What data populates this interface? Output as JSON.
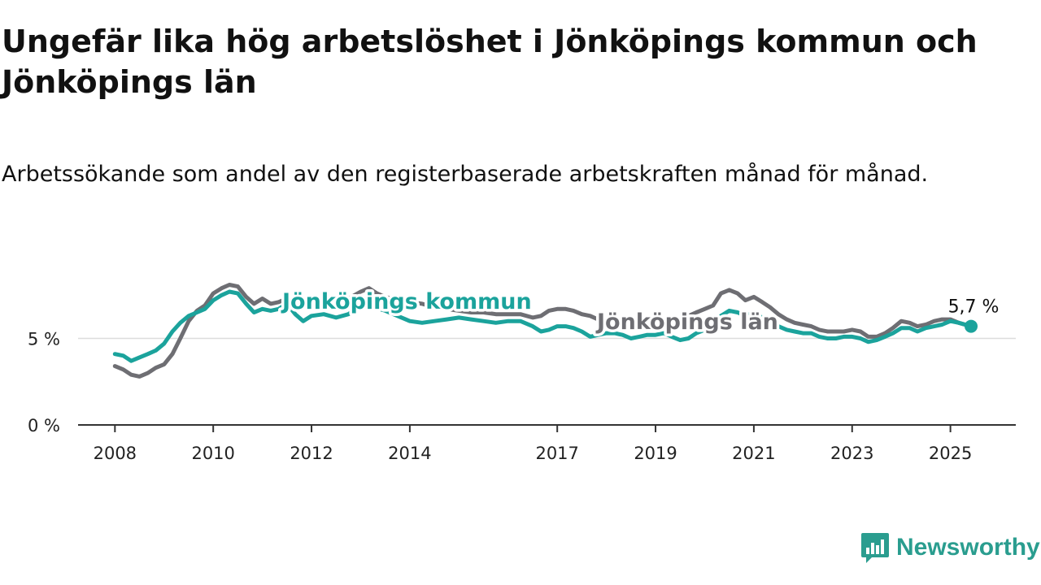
{
  "title": "Ungefär lika hög arbetslöshet i Jönköpings kommun och Jönköpings län",
  "subtitle": "Arbetssökande som andel av den registerbaserade arbetskraften månad för månad.",
  "brand": {
    "name": "Newsworthy",
    "color": "#2a9d8f",
    "icon": "bar-chart-speech-bubble-icon"
  },
  "chart_data": {
    "type": "line",
    "title": "Ungefär lika hög arbetslöshet i Jönköpings kommun och Jönköpings län",
    "subtitle": "Arbetssökande som andel av den registerbaserade arbetskraften månad för månad.",
    "xlabel": "",
    "ylabel": "",
    "x_range": [
      2007.25,
      2026.33
    ],
    "ylim": [
      0,
      10
    ],
    "y_ticks": [
      0,
      5
    ],
    "y_tick_labels": [
      "0 %",
      "5 %"
    ],
    "x_ticks": [
      2008,
      2010,
      2012,
      2014,
      2017,
      2019,
      2021,
      2023,
      2025
    ],
    "x_tick_labels": [
      "2008",
      "2010",
      "2012",
      "2014",
      "2017",
      "2019",
      "2021",
      "2023",
      "2025"
    ],
    "grid": "horizontal",
    "end_label": "5,7 %",
    "series": [
      {
        "name": "Jönköpings län",
        "color": "#6e6e73",
        "points": [
          [
            2008.0,
            3.4
          ],
          [
            2008.17,
            3.2
          ],
          [
            2008.33,
            2.9
          ],
          [
            2008.5,
            2.8
          ],
          [
            2008.67,
            3.0
          ],
          [
            2008.83,
            3.3
          ],
          [
            2009.0,
            3.5
          ],
          [
            2009.17,
            4.1
          ],
          [
            2009.33,
            5.0
          ],
          [
            2009.5,
            6.0
          ],
          [
            2009.67,
            6.6
          ],
          [
            2009.83,
            6.9
          ],
          [
            2010.0,
            7.6
          ],
          [
            2010.17,
            7.9
          ],
          [
            2010.33,
            8.1
          ],
          [
            2010.5,
            8.0
          ],
          [
            2010.67,
            7.4
          ],
          [
            2010.83,
            7.0
          ],
          [
            2011.0,
            7.3
          ],
          [
            2011.17,
            7.0
          ],
          [
            2011.33,
            7.1
          ],
          [
            2011.5,
            7.3
          ],
          [
            2011.67,
            7.0
          ],
          [
            2011.83,
            6.8
          ],
          [
            2012.0,
            6.9
          ],
          [
            2012.25,
            7.0
          ],
          [
            2012.5,
            7.1
          ],
          [
            2012.75,
            7.3
          ],
          [
            2013.0,
            7.7
          ],
          [
            2013.17,
            7.9
          ],
          [
            2013.33,
            7.6
          ],
          [
            2013.5,
            7.4
          ],
          [
            2013.75,
            7.2
          ],
          [
            2014.0,
            7.1
          ],
          [
            2014.25,
            7.0
          ],
          [
            2014.5,
            6.8
          ],
          [
            2014.75,
            6.7
          ],
          [
            2015.0,
            6.6
          ],
          [
            2015.25,
            6.5
          ],
          [
            2015.5,
            6.5
          ],
          [
            2015.75,
            6.4
          ],
          [
            2016.0,
            6.4
          ],
          [
            2016.25,
            6.4
          ],
          [
            2016.5,
            6.2
          ],
          [
            2016.67,
            6.3
          ],
          [
            2016.83,
            6.6
          ],
          [
            2017.0,
            6.7
          ],
          [
            2017.17,
            6.7
          ],
          [
            2017.33,
            6.6
          ],
          [
            2017.5,
            6.4
          ],
          [
            2017.67,
            6.3
          ],
          [
            2017.83,
            6.1
          ],
          [
            2018.0,
            6.0
          ],
          [
            2018.17,
            5.8
          ],
          [
            2018.33,
            5.7
          ],
          [
            2018.5,
            5.6
          ],
          [
            2018.67,
            5.6
          ],
          [
            2018.83,
            5.6
          ],
          [
            2019.0,
            5.6
          ],
          [
            2019.17,
            5.8
          ],
          [
            2019.33,
            5.9
          ],
          [
            2019.5,
            6.0
          ],
          [
            2019.67,
            6.3
          ],
          [
            2019.83,
            6.5
          ],
          [
            2020.0,
            6.7
          ],
          [
            2020.17,
            6.9
          ],
          [
            2020.33,
            7.6
          ],
          [
            2020.5,
            7.8
          ],
          [
            2020.67,
            7.6
          ],
          [
            2020.83,
            7.2
          ],
          [
            2021.0,
            7.4
          ],
          [
            2021.17,
            7.1
          ],
          [
            2021.33,
            6.8
          ],
          [
            2021.5,
            6.4
          ],
          [
            2021.67,
            6.1
          ],
          [
            2021.83,
            5.9
          ],
          [
            2022.0,
            5.8
          ],
          [
            2022.17,
            5.7
          ],
          [
            2022.33,
            5.5
          ],
          [
            2022.5,
            5.4
          ],
          [
            2022.67,
            5.4
          ],
          [
            2022.83,
            5.4
          ],
          [
            2023.0,
            5.5
          ],
          [
            2023.17,
            5.4
          ],
          [
            2023.33,
            5.1
          ],
          [
            2023.5,
            5.1
          ],
          [
            2023.67,
            5.3
          ],
          [
            2023.83,
            5.6
          ],
          [
            2024.0,
            6.0
          ],
          [
            2024.17,
            5.9
          ],
          [
            2024.33,
            5.7
          ],
          [
            2024.5,
            5.8
          ],
          [
            2024.67,
            6.0
          ],
          [
            2024.83,
            6.1
          ],
          [
            2025.0,
            6.1
          ],
          [
            2025.17,
            5.9
          ],
          [
            2025.42,
            5.7
          ]
        ]
      },
      {
        "name": "Jönköpings kommun",
        "color": "#1ba39c",
        "points": [
          [
            2008.0,
            4.1
          ],
          [
            2008.17,
            4.0
          ],
          [
            2008.33,
            3.7
          ],
          [
            2008.5,
            3.9
          ],
          [
            2008.67,
            4.1
          ],
          [
            2008.83,
            4.3
          ],
          [
            2009.0,
            4.7
          ],
          [
            2009.17,
            5.4
          ],
          [
            2009.33,
            5.9
          ],
          [
            2009.5,
            6.3
          ],
          [
            2009.67,
            6.5
          ],
          [
            2009.83,
            6.7
          ],
          [
            2010.0,
            7.2
          ],
          [
            2010.17,
            7.5
          ],
          [
            2010.33,
            7.7
          ],
          [
            2010.5,
            7.6
          ],
          [
            2010.67,
            7.0
          ],
          [
            2010.83,
            6.5
          ],
          [
            2011.0,
            6.7
          ],
          [
            2011.17,
            6.6
          ],
          [
            2011.33,
            6.7
          ],
          [
            2011.5,
            7.0
          ],
          [
            2011.67,
            6.4
          ],
          [
            2011.83,
            6.0
          ],
          [
            2012.0,
            6.3
          ],
          [
            2012.25,
            6.4
          ],
          [
            2012.5,
            6.2
          ],
          [
            2012.75,
            6.4
          ],
          [
            2013.0,
            6.9
          ],
          [
            2013.25,
            6.8
          ],
          [
            2013.5,
            6.6
          ],
          [
            2013.75,
            6.3
          ],
          [
            2014.0,
            6.0
          ],
          [
            2014.25,
            5.9
          ],
          [
            2014.5,
            6.0
          ],
          [
            2014.75,
            6.1
          ],
          [
            2015.0,
            6.2
          ],
          [
            2015.25,
            6.1
          ],
          [
            2015.5,
            6.0
          ],
          [
            2015.75,
            5.9
          ],
          [
            2016.0,
            6.0
          ],
          [
            2016.25,
            6.0
          ],
          [
            2016.5,
            5.7
          ],
          [
            2016.67,
            5.4
          ],
          [
            2016.83,
            5.5
          ],
          [
            2017.0,
            5.7
          ],
          [
            2017.17,
            5.7
          ],
          [
            2017.33,
            5.6
          ],
          [
            2017.5,
            5.4
          ],
          [
            2017.67,
            5.1
          ],
          [
            2017.83,
            5.2
          ],
          [
            2018.0,
            5.3
          ],
          [
            2018.17,
            5.3
          ],
          [
            2018.33,
            5.2
          ],
          [
            2018.5,
            5.0
          ],
          [
            2018.67,
            5.1
          ],
          [
            2018.83,
            5.2
          ],
          [
            2019.0,
            5.2
          ],
          [
            2019.17,
            5.3
          ],
          [
            2019.33,
            5.1
          ],
          [
            2019.5,
            4.9
          ],
          [
            2019.67,
            5.0
          ],
          [
            2019.83,
            5.3
          ],
          [
            2020.0,
            5.5
          ],
          [
            2020.17,
            5.7
          ],
          [
            2020.33,
            6.3
          ],
          [
            2020.5,
            6.6
          ],
          [
            2020.67,
            6.5
          ],
          [
            2020.83,
            6.3
          ],
          [
            2021.0,
            6.5
          ],
          [
            2021.17,
            6.2
          ],
          [
            2021.33,
            5.9
          ],
          [
            2021.5,
            5.7
          ],
          [
            2021.67,
            5.5
          ],
          [
            2021.83,
            5.4
          ],
          [
            2022.0,
            5.3
          ],
          [
            2022.17,
            5.3
          ],
          [
            2022.33,
            5.1
          ],
          [
            2022.5,
            5.0
          ],
          [
            2022.67,
            5.0
          ],
          [
            2022.83,
            5.1
          ],
          [
            2023.0,
            5.1
          ],
          [
            2023.17,
            5.0
          ],
          [
            2023.33,
            4.8
          ],
          [
            2023.5,
            4.9
          ],
          [
            2023.67,
            5.1
          ],
          [
            2023.83,
            5.3
          ],
          [
            2024.0,
            5.6
          ],
          [
            2024.17,
            5.6
          ],
          [
            2024.33,
            5.4
          ],
          [
            2024.5,
            5.6
          ],
          [
            2024.67,
            5.7
          ],
          [
            2024.83,
            5.8
          ],
          [
            2025.0,
            6.0
          ],
          [
            2025.17,
            5.9
          ],
          [
            2025.42,
            5.7
          ]
        ]
      }
    ]
  }
}
